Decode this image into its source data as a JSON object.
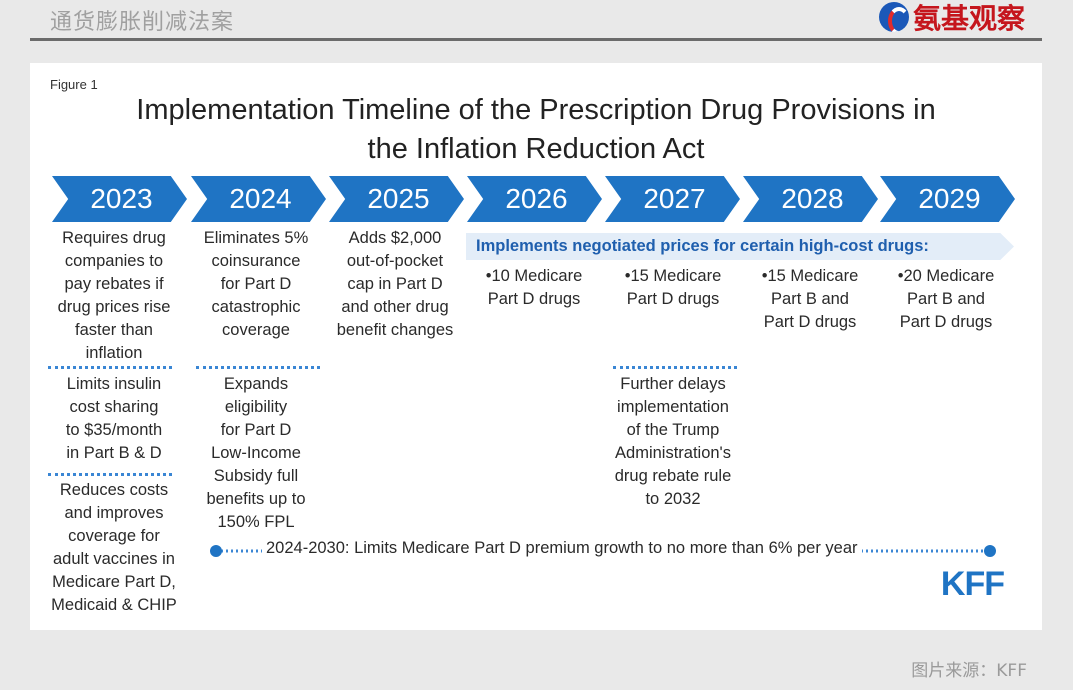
{
  "header": {
    "title": "通货膨胀削减法案",
    "brand": "氨基观察"
  },
  "figure": {
    "label": "Figure 1",
    "title_line1": "Implementation Timeline of the Prescription Drug Provisions in",
    "title_line2": "the Inflation Reduction Act",
    "years": [
      "2023",
      "2024",
      "2025",
      "2026",
      "2027",
      "2028",
      "2029"
    ],
    "col2023": {
      "a": [
        "Requires drug",
        "companies to",
        "pay rebates if",
        "drug prices rise",
        "faster than",
        "inflation"
      ],
      "b": [
        "Limits insulin",
        "cost sharing",
        "to $35/month",
        "in Part B & D"
      ],
      "c": [
        "Reduces costs",
        "and improves",
        "coverage for",
        "adult vaccines in",
        "Medicare Part D,",
        "Medicaid & CHIP"
      ]
    },
    "col2024": {
      "a": [
        "Eliminates 5%",
        "coinsurance",
        "for Part D",
        "catastrophic",
        "coverage"
      ],
      "b": [
        "Expands",
        "eligibility",
        "for Part D",
        "Low-Income",
        "Subsidy full",
        "benefits up to",
        "150% FPL"
      ]
    },
    "col2025": {
      "a": [
        "Adds $2,000",
        "out-of-pocket",
        "cap in Part D",
        "and other drug",
        "benefit changes"
      ]
    },
    "negotiation_banner": "Implements negotiated prices for certain high-cost drugs:",
    "col2026": [
      "•10 Medicare",
      "Part D drugs"
    ],
    "col2027": {
      "a": [
        "•15 Medicare",
        "Part D drugs"
      ],
      "b": [
        "Further delays",
        "implementation",
        "of the Trump",
        "Administration's",
        "drug rebate rule",
        "to 2032"
      ]
    },
    "col2028": [
      "•15 Medicare",
      "Part B and",
      "Part D drugs"
    ],
    "col2029": [
      "•20 Medicare",
      "Part B and",
      "Part D drugs"
    ],
    "premium_note": "2024-2030: Limits Medicare Part D premium growth to no more than 6% per year",
    "logo": "KFF",
    "colors": {
      "chevron": "#1f74c4",
      "banner_bg": "#e3edf8",
      "banner_text": "#1f5fae",
      "dots": "#3a86d4",
      "brand_red": "#c5161d"
    }
  },
  "footer": {
    "source": "图片来源：KFF"
  }
}
